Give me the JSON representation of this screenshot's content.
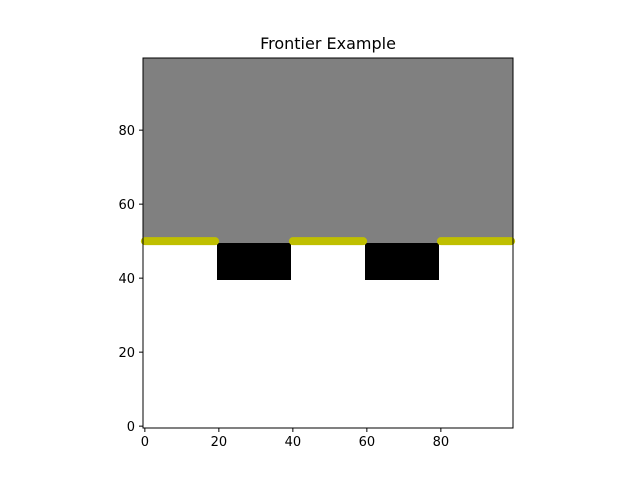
{
  "chart_data": {
    "type": "heatmap",
    "title": "Frontier Example",
    "xlabel": "",
    "ylabel": "",
    "xlim": [
      -0.5,
      99.5
    ],
    "ylim": [
      -0.5,
      99.5
    ],
    "grid": false,
    "x_ticks": [
      0,
      20,
      40,
      60,
      80
    ],
    "y_ticks": [
      0,
      20,
      40,
      60,
      80
    ],
    "colors": {
      "unknown": "#808080",
      "free": "#ffffff",
      "obstacle": "#000000",
      "frontier": "#bfbf00"
    },
    "regions": [
      {
        "label": "unknown",
        "x": [
          0,
          99
        ],
        "y": [
          50,
          99
        ]
      },
      {
        "label": "free",
        "x": [
          0,
          99
        ],
        "y": [
          0,
          49
        ]
      },
      {
        "label": "obstacle",
        "x": [
          20,
          39
        ],
        "y": [
          40,
          49
        ]
      },
      {
        "label": "obstacle",
        "x": [
          60,
          79
        ],
        "y": [
          40,
          49
        ]
      }
    ],
    "frontier_segments": [
      {
        "label": "frontier",
        "y": 50,
        "x": [
          0,
          19
        ]
      },
      {
        "label": "frontier",
        "y": 50,
        "x": [
          40,
          59
        ]
      },
      {
        "label": "frontier",
        "y": 50,
        "x": [
          80,
          99
        ]
      }
    ]
  }
}
